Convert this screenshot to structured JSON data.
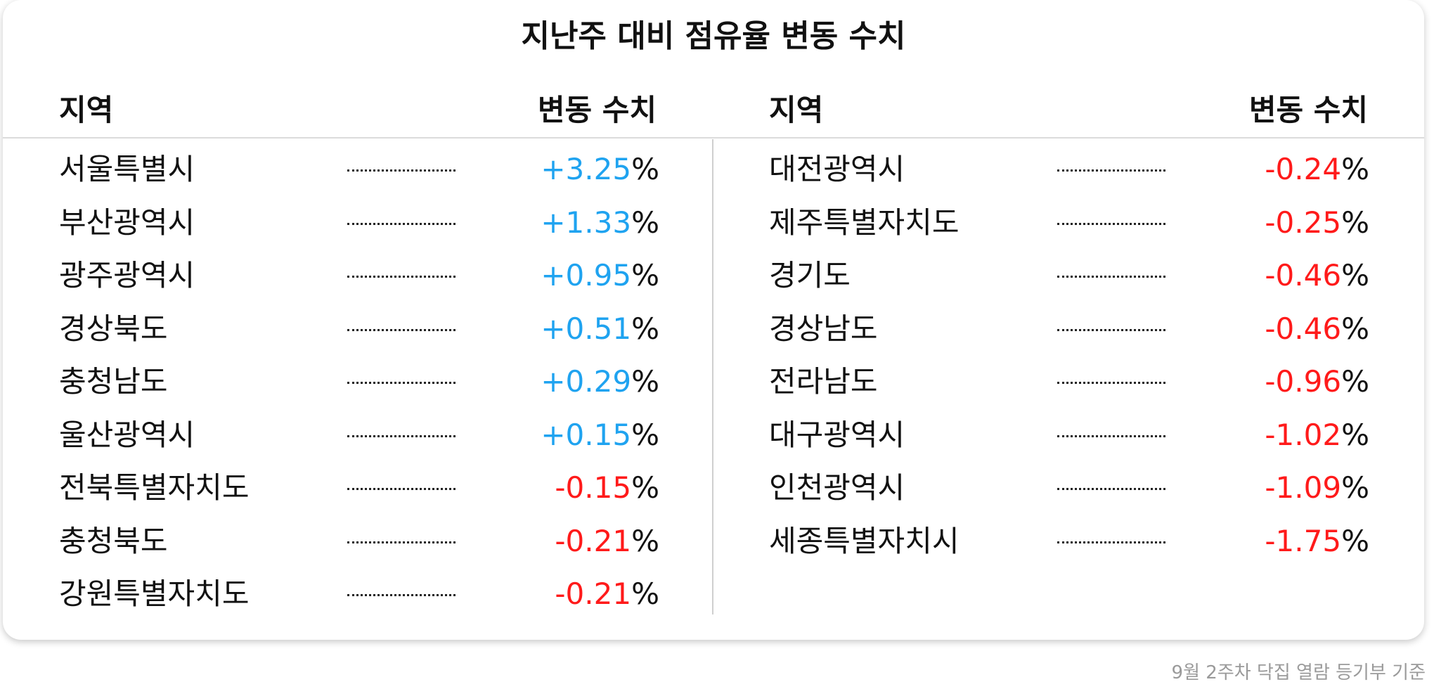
{
  "chart_data": {
    "type": "table",
    "title": "지난주 대비 점유율 변동 수치",
    "columns": [
      "지역",
      "변동 수치"
    ],
    "unit": "%",
    "colors": {
      "positive": "#1fa3f0",
      "negative": "#ff1a1a",
      "text": "#111111"
    },
    "rows": [
      {
        "region": "서울특별시",
        "value": "+3.25"
      },
      {
        "region": "부산광역시",
        "value": "+1.33"
      },
      {
        "region": "광주광역시",
        "value": "+0.95"
      },
      {
        "region": "경상북도",
        "value": "+0.51"
      },
      {
        "region": "충청남도",
        "value": "+0.29"
      },
      {
        "region": "울산광역시",
        "value": "+0.15"
      },
      {
        "region": "전북특별자치도",
        "value": "-0.15"
      },
      {
        "region": "충청북도",
        "value": "-0.21"
      },
      {
        "region": "강원특별자치도",
        "value": "-0.21"
      },
      {
        "region": "대전광역시",
        "value": "-0.24"
      },
      {
        "region": "제주특별자치도",
        "value": "-0.25"
      },
      {
        "region": "경기도",
        "value": "-0.46"
      },
      {
        "region": "경상남도",
        "value": "-0.46"
      },
      {
        "region": "전라남도",
        "value": "-0.96"
      },
      {
        "region": "대구광역시",
        "value": "-1.02"
      },
      {
        "region": "인천광역시",
        "value": "-1.09"
      },
      {
        "region": "세종특별자치시",
        "value": "-1.75"
      }
    ]
  },
  "footnote": "9월 2주차 닥집 열람 등기부 기준"
}
